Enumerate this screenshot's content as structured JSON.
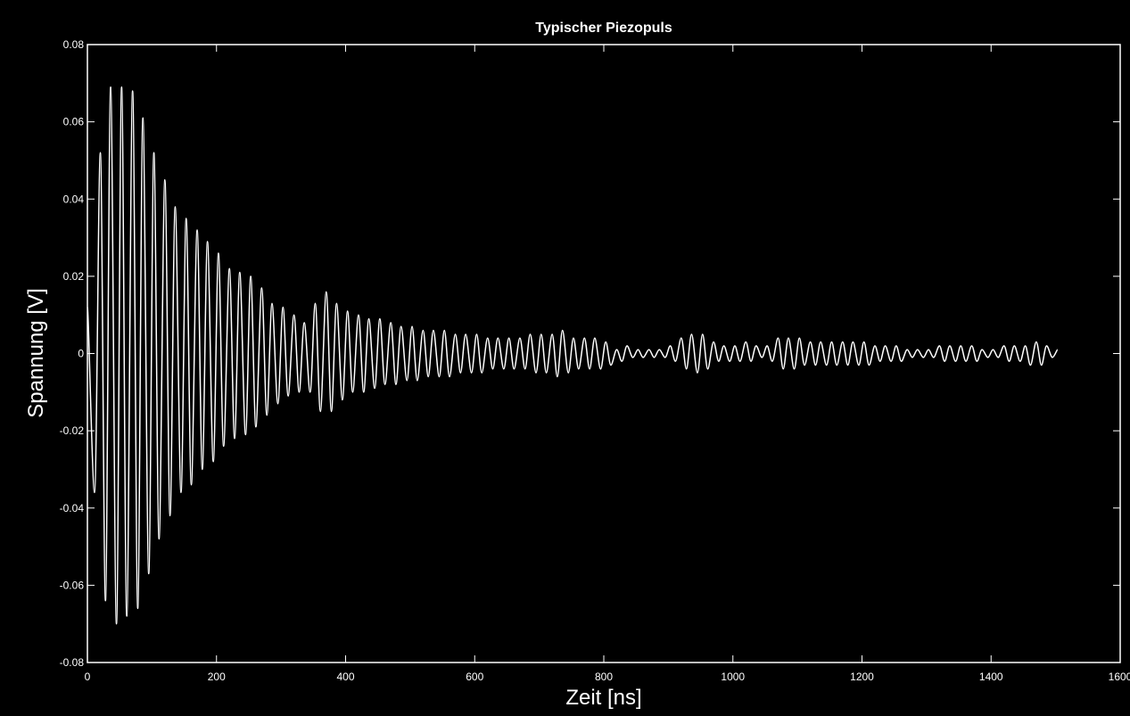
{
  "chart_data": {
    "type": "line",
    "title": "Typischer Piezopuls",
    "xlabel": "Zeit [ns]",
    "ylabel": "Spannung [V]",
    "color": "#ffffff",
    "xlim": [
      0,
      1600
    ],
    "xticks": [
      0,
      200,
      400,
      600,
      800,
      1000,
      1200,
      1400,
      1600
    ],
    "ylim": [
      -0.08,
      0.08
    ],
    "yticks": [
      -0.08,
      -0.06,
      -0.04,
      -0.02,
      0,
      0.02,
      0.04,
      0.06,
      0.08
    ],
    "x": [
      0,
      11,
      20,
      28,
      36,
      45,
      53,
      61,
      70,
      78,
      86,
      95,
      103,
      111,
      120,
      128,
      136,
      145,
      153,
      161,
      170,
      178,
      186,
      195,
      203,
      211,
      220,
      228,
      236,
      245,
      253,
      261,
      270,
      278,
      286,
      295,
      303,
      311,
      320,
      328,
      336,
      345,
      353,
      361,
      370,
      378,
      386,
      395,
      403,
      411,
      420,
      428,
      436,
      445,
      453,
      461,
      470,
      478,
      486,
      495,
      503,
      511,
      520,
      528,
      536,
      545,
      553,
      561,
      570,
      578,
      586,
      595,
      603,
      611,
      620,
      628,
      636,
      645,
      653,
      661,
      670,
      678,
      686,
      695,
      703,
      711,
      720,
      728,
      736,
      745,
      753,
      761,
      770,
      778,
      786,
      795,
      803,
      811,
      820,
      828,
      836,
      845,
      853,
      861,
      870,
      878,
      886,
      895,
      903,
      911,
      920,
      928,
      936,
      945,
      953,
      961,
      970,
      978,
      986,
      995,
      1003,
      1011,
      1020,
      1028,
      1036,
      1045,
      1053,
      1061,
      1070,
      1078,
      1086,
      1095,
      1103,
      1111,
      1120,
      1128,
      1136,
      1145,
      1153,
      1161,
      1170,
      1178,
      1186,
      1195,
      1203,
      1211,
      1220,
      1228,
      1236,
      1245,
      1253,
      1261,
      1270,
      1278,
      1286,
      1295,
      1303,
      1311,
      1320,
      1328,
      1336,
      1345,
      1353,
      1361,
      1370,
      1378,
      1386,
      1395,
      1403,
      1411,
      1420,
      1428,
      1436,
      1445,
      1453,
      1461,
      1470,
      1478,
      1486,
      1495,
      1503
    ],
    "values": [
      0.012,
      -0.036,
      0.052,
      -0.064,
      0.069,
      -0.07,
      0.069,
      -0.068,
      0.068,
      -0.066,
      0.061,
      -0.057,
      0.052,
      -0.048,
      0.045,
      -0.042,
      0.038,
      -0.036,
      0.035,
      -0.034,
      0.032,
      -0.03,
      0.029,
      -0.028,
      0.026,
      -0.024,
      0.022,
      -0.022,
      0.021,
      -0.021,
      0.02,
      -0.019,
      0.017,
      -0.016,
      0.013,
      -0.013,
      0.012,
      -0.011,
      0.01,
      -0.01,
      0.008,
      -0.01,
      0.013,
      -0.015,
      0.016,
      -0.015,
      0.013,
      -0.012,
      0.011,
      -0.01,
      0.01,
      -0.01,
      0.009,
      -0.009,
      0.009,
      -0.008,
      0.008,
      -0.008,
      0.007,
      -0.007,
      0.007,
      -0.007,
      0.006,
      -0.006,
      0.006,
      -0.006,
      0.006,
      -0.006,
      0.005,
      -0.005,
      0.005,
      -0.005,
      0.005,
      -0.005,
      0.004,
      -0.004,
      0.004,
      -0.004,
      0.004,
      -0.004,
      0.004,
      -0.004,
      0.005,
      -0.005,
      0.005,
      -0.005,
      0.005,
      -0.006,
      0.006,
      -0.005,
      0.004,
      -0.004,
      0.004,
      -0.004,
      0.004,
      -0.004,
      0.003,
      -0.003,
      0.001,
      -0.002,
      0.002,
      -0.001,
      0.001,
      -0.001,
      0.001,
      -0.001,
      0.001,
      -0.001,
      0.002,
      -0.002,
      0.004,
      -0.004,
      0.005,
      -0.005,
      0.005,
      -0.004,
      0.003,
      -0.002,
      0.002,
      -0.002,
      0.002,
      -0.002,
      0.003,
      -0.002,
      0.002,
      -0.001,
      0.002,
      -0.002,
      0.004,
      -0.004,
      0.004,
      -0.004,
      0.004,
      -0.003,
      0.003,
      -0.003,
      0.003,
      -0.003,
      0.003,
      -0.003,
      0.003,
      -0.003,
      0.003,
      -0.003,
      0.003,
      -0.003,
      0.002,
      -0.002,
      0.002,
      -0.002,
      0.002,
      -0.002,
      0.001,
      -0.001,
      0.001,
      -0.001,
      0.001,
      -0.001,
      0.002,
      -0.002,
      0.002,
      -0.002,
      0.002,
      -0.002,
      0.002,
      -0.002,
      0.001,
      -0.001,
      0.001,
      -0.001,
      0.002,
      -0.002,
      0.002,
      -0.002,
      0.002,
      -0.003,
      0.003,
      -0.003,
      0.002,
      -0.001,
      0.001
    ]
  }
}
